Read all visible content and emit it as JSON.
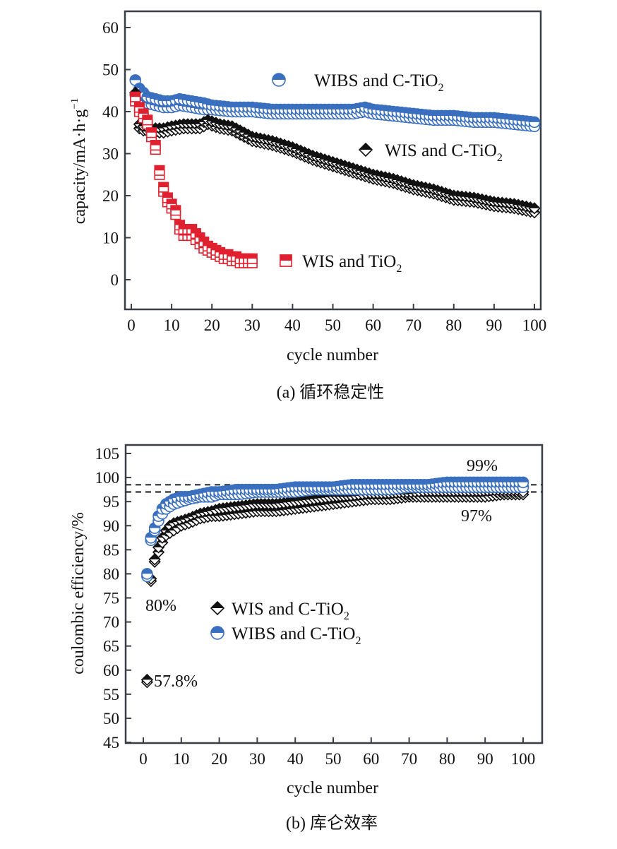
{
  "colors": {
    "blue": "#3a6fbf",
    "red": "#e0202e",
    "black": "#111111",
    "axis": "#3a3f47"
  },
  "chart_data": [
    {
      "id": "a",
      "type": "scatter",
      "caption": "(a) 循环稳定性",
      "xlabel": "cycle number",
      "ylabel": "capacity/mA·h·g",
      "ylabel_sup": "−1",
      "xlim": [
        -1,
        101
      ],
      "ylim": [
        -8,
        64
      ],
      "xticks": [
        0,
        10,
        20,
        30,
        40,
        50,
        60,
        70,
        80,
        90,
        100
      ],
      "yticks": [
        0,
        10,
        20,
        30,
        40,
        50,
        60
      ],
      "grid": false,
      "legend": [
        {
          "series": "WIBS and C-TiO2",
          "label": "WIBS and C-TiO",
          "sub": "2",
          "marker": "circle",
          "color": "blue",
          "placement": "top-center"
        },
        {
          "series": "WIS and C-TiO2",
          "label": "WIS and C-TiO",
          "sub": "2",
          "marker": "diamond",
          "color": "black",
          "placement": "right"
        },
        {
          "series": "WIS and TiO2",
          "label": "WIS and TiO",
          "sub": "2",
          "marker": "square",
          "color": "red",
          "placement": "center"
        }
      ],
      "series": [
        {
          "name": "WIBS and C-TiO2",
          "marker": "circle",
          "color": "blue",
          "x": [
            1,
            2,
            3,
            4,
            6,
            8,
            10,
            12,
            15,
            18,
            20,
            25,
            30,
            35,
            40,
            45,
            50,
            55,
            58,
            60,
            65,
            70,
            75,
            80,
            85,
            90,
            95,
            100
          ],
          "charge": [
            47.5,
            45.5,
            44.5,
            43.5,
            43,
            42.5,
            42.5,
            43,
            42.5,
            42,
            41.5,
            41,
            41,
            40.5,
            40.5,
            40.5,
            40.5,
            40.5,
            41,
            40.5,
            40,
            39.5,
            39,
            39,
            38.5,
            38.5,
            38,
            37.5
          ],
          "discharge": [
            44,
            43.5,
            42.5,
            42,
            41.5,
            41,
            41,
            41.5,
            41,
            40.5,
            40.5,
            40,
            40,
            39.5,
            39.5,
            39.5,
            39.5,
            39.5,
            40,
            39.5,
            39,
            38.5,
            38,
            38,
            37.5,
            37.5,
            37,
            36.5
          ]
        },
        {
          "name": "WIS and C-TiO2",
          "marker": "diamond",
          "color": "black",
          "x": [
            1,
            2,
            3,
            5,
            8,
            10,
            13,
            15,
            17,
            19,
            22,
            25,
            30,
            35,
            40,
            45,
            50,
            55,
            60,
            65,
            70,
            75,
            80,
            85,
            90,
            95,
            100
          ],
          "charge": [
            44.5,
            37,
            36.5,
            36,
            36,
            36.5,
            37,
            37,
            37,
            38,
            37,
            36.5,
            34,
            33,
            31.5,
            29.5,
            28,
            26.5,
            25,
            24,
            22.5,
            21.5,
            20,
            19.5,
            18.5,
            18,
            17
          ],
          "discharge": [
            44.5,
            36,
            35.5,
            35,
            35,
            35.5,
            36,
            36,
            36,
            37,
            36,
            35.5,
            33,
            32,
            30.5,
            28.5,
            27,
            25.5,
            24,
            23,
            21.5,
            20.5,
            19,
            18.5,
            17.5,
            17,
            16
          ]
        },
        {
          "name": "WIS and TiO2",
          "marker": "square",
          "color": "red",
          "x": [
            1,
            2,
            3,
            4,
            6,
            7,
            8,
            9,
            10,
            11,
            12,
            13,
            14,
            15,
            16,
            17,
            18,
            19,
            20,
            21,
            22,
            23,
            24,
            25,
            26,
            27,
            28,
            29,
            30
          ],
          "charge": [
            43.5,
            41,
            39.5,
            38,
            32,
            26,
            22,
            19.5,
            18,
            16.5,
            13,
            12,
            12,
            12,
            11,
            10,
            9,
            8,
            7.5,
            7,
            6.5,
            6,
            6,
            5.5,
            5.5,
            5,
            5,
            5,
            5
          ],
          "discharge": [
            42.5,
            40,
            38.5,
            37,
            31,
            25,
            21,
            18.5,
            17,
            15.5,
            12,
            10.5,
            10.5,
            10.5,
            9.5,
            8.5,
            7.5,
            7,
            6.5,
            6,
            5.5,
            5,
            5,
            4.5,
            4.5,
            4,
            4,
            4,
            4
          ]
        }
      ]
    },
    {
      "id": "b",
      "type": "scatter",
      "caption": "(b) 库仑效率",
      "xlabel": "cycle number",
      "ylabel": "coulombic efficiency/%",
      "xlim": [
        -5,
        105
      ],
      "ylim": [
        45,
        107
      ],
      "xticks": [
        0,
        10,
        20,
        30,
        40,
        50,
        60,
        70,
        80,
        90,
        100
      ],
      "yticks": [
        45,
        50,
        55,
        60,
        65,
        70,
        75,
        80,
        85,
        90,
        95,
        100,
        105
      ],
      "grid": false,
      "reference_lines": [
        98.5,
        97
      ],
      "annotations": [
        {
          "text": "99%",
          "x": 90,
          "y": 102
        },
        {
          "text": "97%",
          "x": 90,
          "y": 94.5
        },
        {
          "text": "80%",
          "x": 2,
          "y": 73.5
        },
        {
          "text": "57.8%",
          "x": 4,
          "y": 57
        }
      ],
      "legend": [
        {
          "series": "WIS and C-TiO2",
          "label": "WIS and C-TiO",
          "sub": "2",
          "marker": "diamond",
          "color": "black",
          "placement": "center-left"
        },
        {
          "series": "WIBS and C-TiO2",
          "label": "WIBS and C-TiO",
          "sub": "2",
          "marker": "circle",
          "color": "blue",
          "placement": "center-left"
        }
      ],
      "series": [
        {
          "name": "WIS and C-TiO2",
          "marker": "diamond",
          "color": "black",
          "x": [
            1,
            2,
            3,
            4,
            5,
            6,
            7,
            8,
            10,
            12,
            15,
            18,
            20,
            25,
            30,
            35,
            40,
            45,
            50,
            55,
            60,
            65,
            70,
            75,
            80,
            85,
            90,
            95,
            100
          ],
          "charge": [
            58,
            79,
            83,
            85.5,
            87.5,
            89,
            90,
            90.5,
            91,
            91.5,
            92.5,
            93,
            93.5,
            94,
            94.5,
            94.5,
            95,
            95.5,
            96,
            96,
            96.5,
            96.5,
            96.5,
            97,
            97,
            97,
            97,
            97,
            97
          ],
          "discharge": [
            57.5,
            78.5,
            82.5,
            84.5,
            86.5,
            88,
            88.5,
            89,
            90,
            90.5,
            91.5,
            92,
            92,
            92.5,
            93,
            93,
            93.5,
            94,
            94.5,
            95,
            95.5,
            95.5,
            96,
            96,
            96,
            96,
            96,
            96.5,
            96.5
          ]
        },
        {
          "name": "WIBS and C-TiO2",
          "marker": "circle",
          "color": "blue",
          "x": [
            1,
            2,
            3,
            4,
            5,
            6,
            7,
            8,
            10,
            12,
            15,
            18,
            20,
            25,
            30,
            35,
            40,
            45,
            50,
            55,
            60,
            65,
            70,
            75,
            80,
            85,
            90,
            95,
            100
          ],
          "charge": [
            80,
            87.5,
            89.5,
            92,
            93.5,
            94.5,
            95,
            95.5,
            96,
            96,
            96.5,
            97,
            97,
            97.5,
            97.5,
            97.5,
            98,
            98,
            98,
            98.5,
            98.5,
            98.5,
            98.5,
            98.5,
            99,
            99,
            99,
            99,
            99
          ],
          "discharge": [
            79.5,
            87,
            89,
            91,
            92.5,
            93.5,
            94,
            94.5,
            95,
            95.5,
            96,
            96,
            96.5,
            96.5,
            97,
            97,
            97,
            97.5,
            97.5,
            97.5,
            97.5,
            97.5,
            98,
            98,
            98,
            98,
            98,
            98,
            98
          ]
        }
      ]
    }
  ]
}
